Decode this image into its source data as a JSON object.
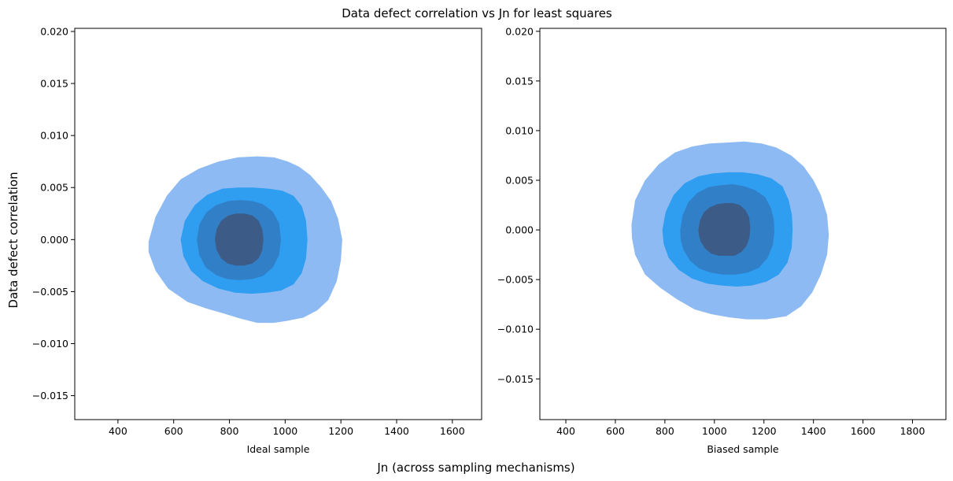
{
  "figure": {
    "suptitle": "Data defect correlation vs Jn for least squares",
    "supxlabel": "Jn (across sampling mechanisms)",
    "supylabel": "Data defect correlation"
  },
  "chart_data": [
    {
      "type": "kde-contour",
      "xlabel": "Ideal sample",
      "xlim": [
        245,
        1705
      ],
      "ylim": [
        -0.0173,
        0.0203
      ],
      "xticks": [
        400,
        600,
        800,
        1000,
        1200,
        1400,
        1600
      ],
      "xtick_labels": [
        "400",
        "600",
        "800",
        "1000",
        "1200",
        "1400",
        "1600"
      ],
      "yticks": [
        -0.015,
        -0.01,
        -0.005,
        0.0,
        0.005,
        0.01,
        0.015,
        0.02
      ],
      "ytick_labels": [
        "−0.015",
        "−0.010",
        "−0.005",
        "0.000",
        "0.005",
        "0.010",
        "0.015",
        "0.020"
      ],
      "grid": false,
      "levels": [
        {
          "level": 1,
          "color": "#8dbaf2",
          "points": [
            [
              510,
              -0.0002
            ],
            [
              535,
              0.0022
            ],
            [
              575,
              0.0042
            ],
            [
              625,
              0.0058
            ],
            [
              690,
              0.0068
            ],
            [
              760,
              0.0075
            ],
            [
              830,
              0.0079
            ],
            [
              900,
              0.008
            ],
            [
              960,
              0.0079
            ],
            [
              1010,
              0.0075
            ],
            [
              1050,
              0.007
            ],
            [
              1090,
              0.0062
            ],
            [
              1130,
              0.005
            ],
            [
              1165,
              0.0037
            ],
            [
              1190,
              0.002
            ],
            [
              1205,
              0.0
            ],
            [
              1200,
              -0.002
            ],
            [
              1185,
              -0.004
            ],
            [
              1155,
              -0.0058
            ],
            [
              1115,
              -0.0068
            ],
            [
              1065,
              -0.0075
            ],
            [
              1010,
              -0.0078
            ],
            [
              960,
              -0.008
            ],
            [
              900,
              -0.008
            ],
            [
              840,
              -0.0076
            ],
            [
              780,
              -0.0071
            ],
            [
              715,
              -0.0066
            ],
            [
              650,
              -0.006
            ],
            [
              580,
              -0.0047
            ],
            [
              535,
              -0.003
            ],
            [
              510,
              -0.0012
            ]
          ]
        },
        {
          "level": 2,
          "color": "#2f9df0",
          "points": [
            [
              625,
              0.0
            ],
            [
              640,
              0.0018
            ],
            [
              675,
              0.0033
            ],
            [
              720,
              0.0043
            ],
            [
              775,
              0.0049
            ],
            [
              830,
              0.005
            ],
            [
              885,
              0.005
            ],
            [
              940,
              0.0049
            ],
            [
              990,
              0.0047
            ],
            [
              1030,
              0.0042
            ],
            [
              1060,
              0.0032
            ],
            [
              1075,
              0.0018
            ],
            [
              1080,
              0.0
            ],
            [
              1075,
              -0.0018
            ],
            [
              1060,
              -0.0032
            ],
            [
              1030,
              -0.0043
            ],
            [
              985,
              -0.0049
            ],
            [
              935,
              -0.0051
            ],
            [
              880,
              -0.0052
            ],
            [
              820,
              -0.0051
            ],
            [
              760,
              -0.0047
            ],
            [
              705,
              -0.004
            ],
            [
              662,
              -0.003
            ],
            [
              635,
              -0.0016
            ]
          ]
        },
        {
          "level": 3,
          "color": "#317fc6",
          "points": [
            [
              683,
              0.0
            ],
            [
              693,
              0.0015
            ],
            [
              717,
              0.0026
            ],
            [
              752,
              0.0033
            ],
            [
              795,
              0.0037
            ],
            [
              840,
              0.0038
            ],
            [
              882,
              0.0037
            ],
            [
              920,
              0.0034
            ],
            [
              955,
              0.0027
            ],
            [
              978,
              0.0016
            ],
            [
              985,
              0.0
            ],
            [
              978,
              -0.0015
            ],
            [
              955,
              -0.0027
            ],
            [
              920,
              -0.0035
            ],
            [
              880,
              -0.0038
            ],
            [
              835,
              -0.0039
            ],
            [
              792,
              -0.0038
            ],
            [
              752,
              -0.0034
            ],
            [
              716,
              -0.0027
            ],
            [
              692,
              -0.0015
            ]
          ]
        },
        {
          "level": 4,
          "color": "#3c5c87",
          "points": [
            [
              748,
              0.0
            ],
            [
              754,
              0.001
            ],
            [
              770,
              0.0018
            ],
            [
              795,
              0.0023
            ],
            [
              825,
              0.0025
            ],
            [
              855,
              0.0025
            ],
            [
              883,
              0.0023
            ],
            [
              905,
              0.0018
            ],
            [
              918,
              0.001
            ],
            [
              922,
              0.0
            ],
            [
              918,
              -0.001
            ],
            [
              905,
              -0.0018
            ],
            [
              882,
              -0.0023
            ],
            [
              852,
              -0.0025
            ],
            [
              822,
              -0.0025
            ],
            [
              794,
              -0.0023
            ],
            [
              770,
              -0.0018
            ],
            [
              754,
              -0.001
            ]
          ]
        }
      ]
    },
    {
      "type": "kde-contour",
      "xlabel": "Biased sample",
      "xlim": [
        295,
        1935
      ],
      "ylim": [
        -0.0191,
        0.0203
      ],
      "xticks": [
        400,
        600,
        800,
        1000,
        1200,
        1400,
        1600,
        1800
      ],
      "xtick_labels": [
        "400",
        "600",
        "800",
        "1000",
        "1200",
        "1400",
        "1600",
        "1800"
      ],
      "yticks": [
        -0.015,
        -0.01,
        -0.005,
        0.0,
        0.005,
        0.01,
        0.015,
        0.02
      ],
      "ytick_labels": [
        "−0.015",
        "−0.010",
        "−0.005",
        "0.000",
        "0.005",
        "0.010",
        "0.015",
        "0.020"
      ],
      "grid": false,
      "levels": [
        {
          "level": 1,
          "color": "#8dbaf2",
          "points": [
            [
              665,
              0.0005
            ],
            [
              680,
              0.003
            ],
            [
              720,
              0.005
            ],
            [
              775,
              0.0066
            ],
            [
              840,
              0.0078
            ],
            [
              910,
              0.0084
            ],
            [
              980,
              0.0087
            ],
            [
              1050,
              0.0088
            ],
            [
              1120,
              0.0089
            ],
            [
              1190,
              0.0087
            ],
            [
              1250,
              0.0083
            ],
            [
              1310,
              0.0075
            ],
            [
              1360,
              0.0064
            ],
            [
              1400,
              0.005
            ],
            [
              1430,
              0.0035
            ],
            [
              1455,
              0.0015
            ],
            [
              1462,
              -0.0005
            ],
            [
              1455,
              -0.0025
            ],
            [
              1430,
              -0.0045
            ],
            [
              1395,
              -0.0063
            ],
            [
              1350,
              -0.0077
            ],
            [
              1290,
              -0.0087
            ],
            [
              1210,
              -0.009
            ],
            [
              1130,
              -0.009
            ],
            [
              1060,
              -0.0088
            ],
            [
              990,
              -0.0085
            ],
            [
              920,
              -0.008
            ],
            [
              850,
              -0.007
            ],
            [
              780,
              -0.0058
            ],
            [
              720,
              -0.0045
            ],
            [
              680,
              -0.0025
            ],
            [
              667,
              -0.0008
            ]
          ]
        },
        {
          "level": 2,
          "color": "#2f9df0",
          "points": [
            [
              790,
              0.0
            ],
            [
              803,
              0.0018
            ],
            [
              835,
              0.0035
            ],
            [
              880,
              0.0047
            ],
            [
              935,
              0.0054
            ],
            [
              995,
              0.0057
            ],
            [
              1055,
              0.0058
            ],
            [
              1115,
              0.0058
            ],
            [
              1175,
              0.0056
            ],
            [
              1230,
              0.0052
            ],
            [
              1275,
              0.0044
            ],
            [
              1300,
              0.003
            ],
            [
              1313,
              0.0015
            ],
            [
              1316,
              0.0
            ],
            [
              1312,
              -0.0018
            ],
            [
              1295,
              -0.0033
            ],
            [
              1260,
              -0.0045
            ],
            [
              1210,
              -0.0052
            ],
            [
              1150,
              -0.0056
            ],
            [
              1090,
              -0.0057
            ],
            [
              1030,
              -0.0056
            ],
            [
              970,
              -0.0054
            ],
            [
              910,
              -0.0049
            ],
            [
              855,
              -0.004
            ],
            [
              815,
              -0.0028
            ],
            [
              795,
              -0.0014
            ]
          ]
        },
        {
          "level": 3,
          "color": "#317fc6",
          "points": [
            [
              862,
              0.0
            ],
            [
              872,
              0.0015
            ],
            [
              895,
              0.0028
            ],
            [
              930,
              0.0037
            ],
            [
              975,
              0.0043
            ],
            [
              1025,
              0.0045
            ],
            [
              1075,
              0.0046
            ],
            [
              1120,
              0.0044
            ],
            [
              1165,
              0.004
            ],
            [
              1205,
              0.0033
            ],
            [
              1228,
              0.0022
            ],
            [
              1240,
              0.001
            ],
            [
              1242,
              -0.0002
            ],
            [
              1236,
              -0.0015
            ],
            [
              1215,
              -0.0028
            ],
            [
              1180,
              -0.0038
            ],
            [
              1135,
              -0.0043
            ],
            [
              1085,
              -0.0045
            ],
            [
              1035,
              -0.0045
            ],
            [
              985,
              -0.0043
            ],
            [
              940,
              -0.0039
            ],
            [
              902,
              -0.0031
            ],
            [
              875,
              -0.002
            ],
            [
              864,
              -0.001
            ]
          ]
        },
        {
          "level": 4,
          "color": "#3c5c87",
          "points": [
            [
              935,
              0.0
            ],
            [
              942,
              0.001
            ],
            [
              958,
              0.0018
            ],
            [
              982,
              0.0023
            ],
            [
              1012,
              0.0026
            ],
            [
              1045,
              0.0027
            ],
            [
              1075,
              0.0027
            ],
            [
              1103,
              0.0025
            ],
            [
              1125,
              0.002
            ],
            [
              1140,
              0.0013
            ],
            [
              1145,
              0.0003
            ],
            [
              1142,
              -0.0007
            ],
            [
              1130,
              -0.0016
            ],
            [
              1110,
              -0.0022
            ],
            [
              1082,
              -0.0026
            ],
            [
              1050,
              -0.0026
            ],
            [
              1018,
              -0.0026
            ],
            [
              988,
              -0.0024
            ],
            [
              963,
              -0.0019
            ],
            [
              945,
              -0.0012
            ],
            [
              937,
              -0.0005
            ]
          ]
        }
      ]
    }
  ]
}
